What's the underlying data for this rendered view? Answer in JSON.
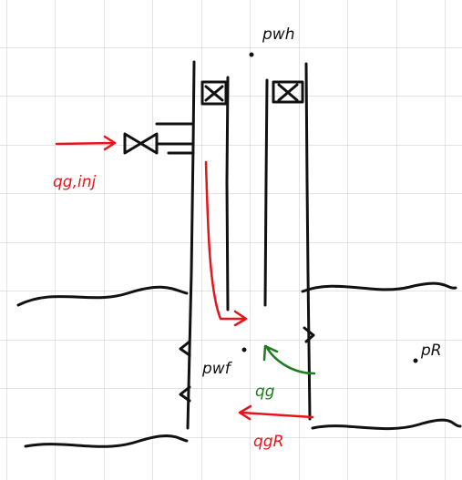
{
  "labels": {
    "wellhead_pressure": "pwh",
    "injection_rate": "qg,inj",
    "bottomhole_pressure": "pwf",
    "gas_rate": "qg",
    "reservoir_gas_rate": "qgR",
    "reservoir_pressure": "pR"
  }
}
